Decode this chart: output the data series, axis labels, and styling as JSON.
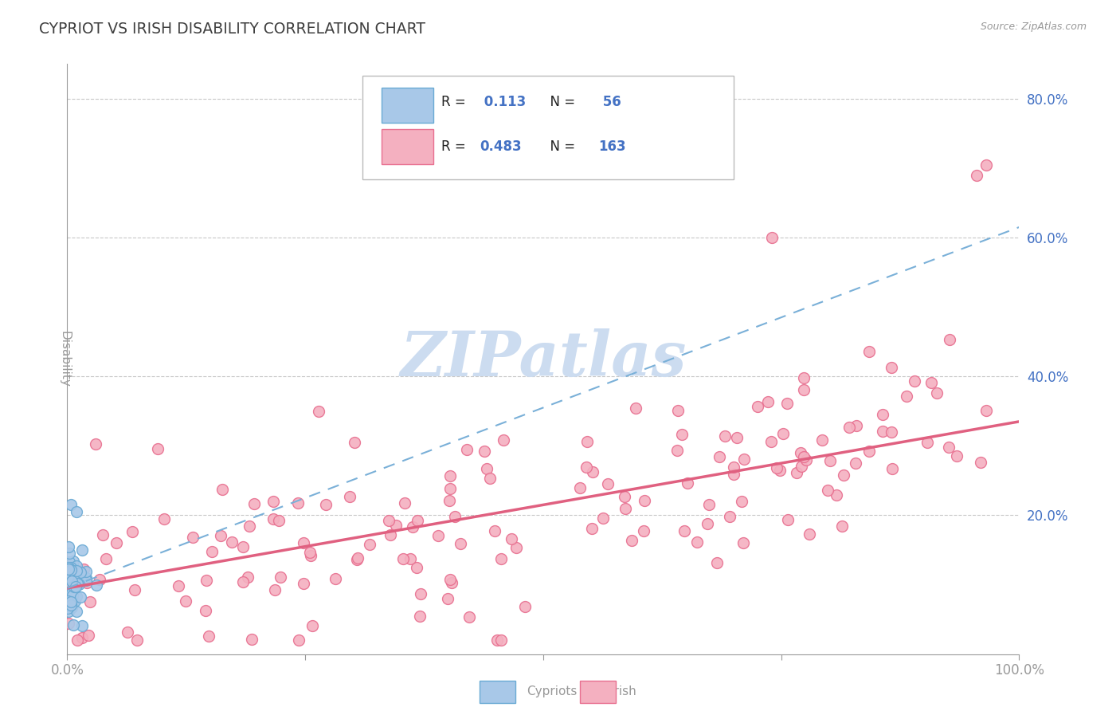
{
  "title": "CYPRIOT VS IRISH DISABILITY CORRELATION CHART",
  "source": "Source: ZipAtlas.com",
  "ylabel": "Disability",
  "xlim": [
    0.0,
    1.0
  ],
  "ylim": [
    0.0,
    0.85
  ],
  "ytick_positions": [
    0.2,
    0.4,
    0.6,
    0.8
  ],
  "ytick_labels": [
    "20.0%",
    "40.0%",
    "60.0%",
    "80.0%"
  ],
  "cypriot_R": 0.113,
  "cypriot_N": 56,
  "irish_R": 0.483,
  "irish_N": 163,
  "cypriot_color": "#a8c8e8",
  "cypriot_edge": "#6aaad4",
  "irish_color": "#f4b0c0",
  "irish_edge": "#e87090",
  "cypriot_line_color": "#7ab0d8",
  "irish_line_color": "#e06080",
  "background_color": "#ffffff",
  "grid_color": "#c8c8c8",
  "title_color": "#404040",
  "axis_color": "#999999",
  "legend_R_color": "#4472c4",
  "legend_label_color": "#222222",
  "watermark_color": "#ccdcf0",
  "cypriot_line_intercept": 0.095,
  "cypriot_line_slope": 0.52,
  "irish_line_intercept": 0.095,
  "irish_line_slope": 0.24,
  "marker_size": 100,
  "figsize": [
    14.06,
    8.92
  ],
  "dpi": 100
}
